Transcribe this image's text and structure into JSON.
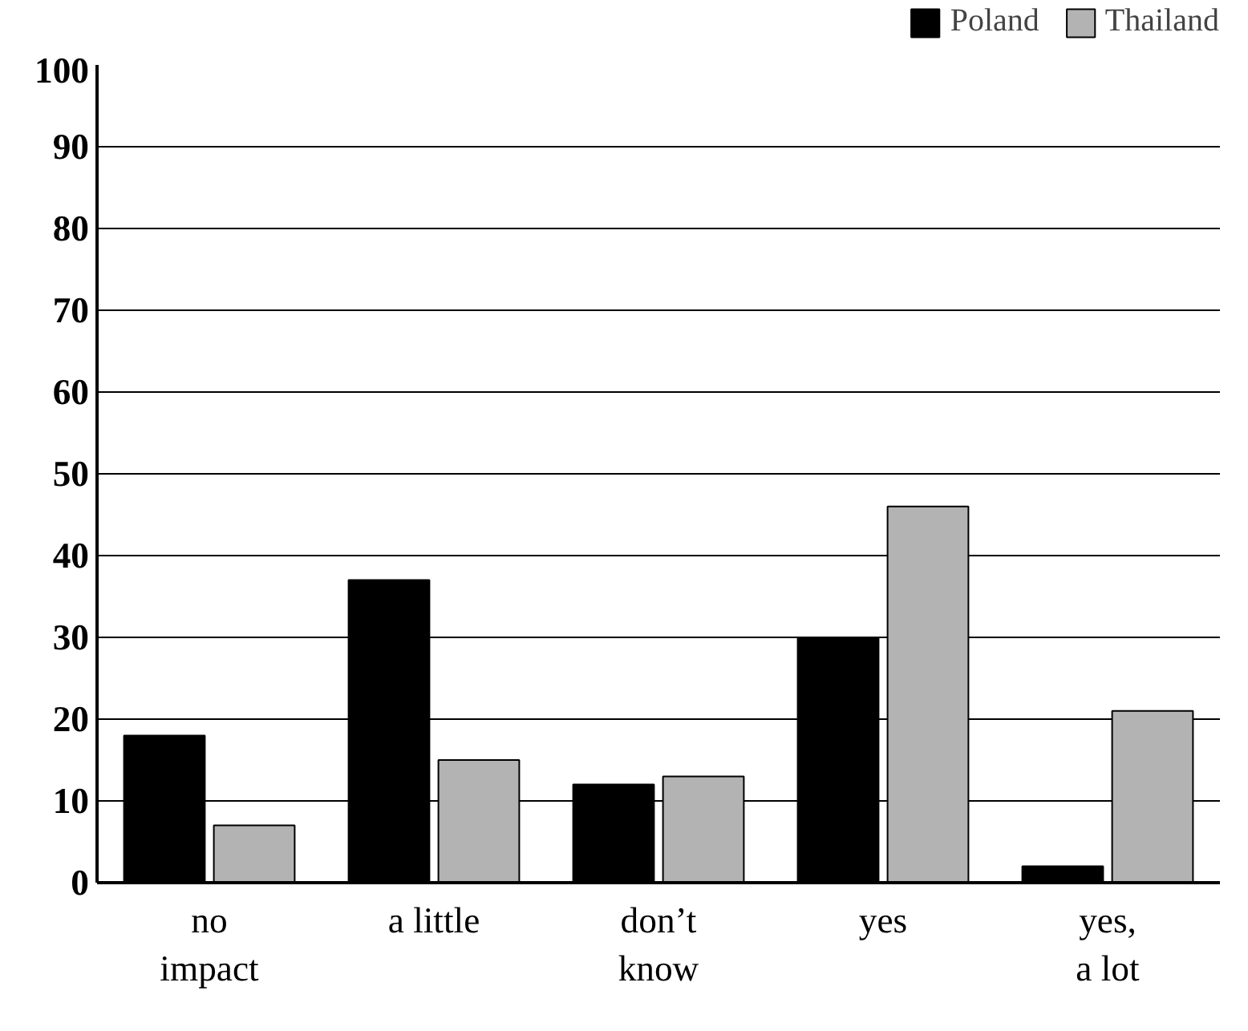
{
  "chart_data": {
    "type": "bar",
    "categories": [
      "no\nimpact",
      "a little",
      "don’t\nknow",
      "yes",
      "yes,\na lot"
    ],
    "series": [
      {
        "name": "Poland",
        "color": "#000000",
        "values": [
          18,
          37,
          12,
          30,
          2
        ]
      },
      {
        "name": "Thailand",
        "color": "#b3b3b3",
        "values": [
          7,
          15,
          13,
          46,
          21
        ]
      }
    ],
    "ylim": [
      0,
      100
    ],
    "yticks": [
      0,
      10,
      20,
      30,
      40,
      50,
      60,
      70,
      80,
      90,
      100
    ],
    "grid": "y",
    "legend": "top right"
  }
}
